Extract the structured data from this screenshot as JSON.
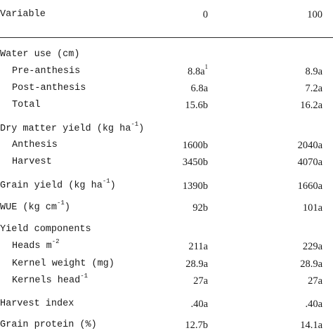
{
  "header": {
    "variable": "Variable",
    "col0": "0",
    "col1": "100"
  },
  "water_use": {
    "title": "Water use (cm)",
    "pre": {
      "label": "Pre-anthesis",
      "v0": "8.8a",
      "v0_note": "1",
      "v1": "8.9a"
    },
    "post": {
      "label": "Post-anthesis",
      "v0": "6.8a",
      "v1": "7.2a"
    },
    "total": {
      "label": "Total",
      "v0": "15.6b",
      "v1": "16.2a"
    }
  },
  "dry_matter": {
    "title": "Dry matter yield (kg ha",
    "title_sup": "-1",
    "title_end": ")",
    "anthesis": {
      "label": "Anthesis",
      "v0": "1600b",
      "v1": "2040a"
    },
    "harvest": {
      "label": "Harvest",
      "v0": "3450b",
      "v1": "4070a"
    }
  },
  "grain_yield": {
    "label": "Grain yield (kg ha",
    "sup": "-1",
    "end": ")",
    "v0": "1390b",
    "v1": "1660a"
  },
  "wue": {
    "label": "WUE (kg cm",
    "sup": "-1",
    "end": ")",
    "v0": "92b",
    "v1": "101a"
  },
  "yield_components": {
    "title": "Yield components",
    "heads": {
      "label": "Heads m",
      "sup": "-2",
      "v0": "211a",
      "v1": "229a"
    },
    "kernel_weight": {
      "label": "Kernel weight (mg)",
      "v0": "28.9a",
      "v1": "28.9a"
    },
    "kernels_head": {
      "label": "Kernels head",
      "sup": "-1",
      "v0": "27a",
      "v1": "27a"
    }
  },
  "harvest_index": {
    "label": "Harvest index",
    "v0": ".40a",
    "v1": ".40a"
  },
  "grain_protein": {
    "label": "Grain protein (%)",
    "v0": "12.7b",
    "v1": "14.1a"
  }
}
